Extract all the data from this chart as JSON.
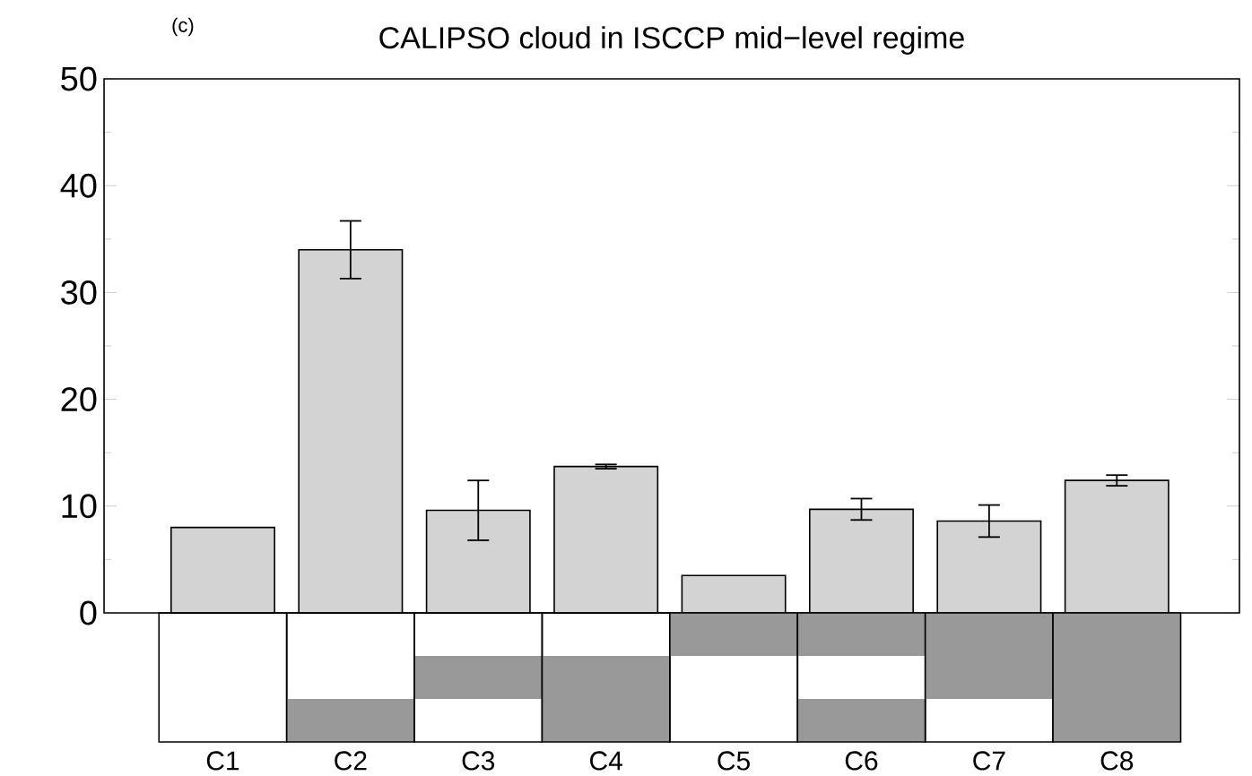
{
  "chart_data": {
    "type": "bar",
    "title": "CALIPSO cloud in ISCCP mid−level regime",
    "annotations": [
      "(c)"
    ],
    "categories": [
      "C1",
      "C2",
      "C3",
      "C4",
      "C5",
      "C6",
      "C7",
      "C8"
    ],
    "values": [
      8.0,
      34.0,
      9.6,
      13.7,
      3.5,
      9.7,
      8.6,
      12.4
    ],
    "errors": [
      null,
      2.7,
      2.8,
      0.2,
      null,
      1.0,
      1.5,
      0.5
    ],
    "color": "#d3d3d3",
    "ylim": [
      0,
      50
    ],
    "yticks": [
      0,
      10,
      20,
      30,
      40,
      50
    ]
  }
}
